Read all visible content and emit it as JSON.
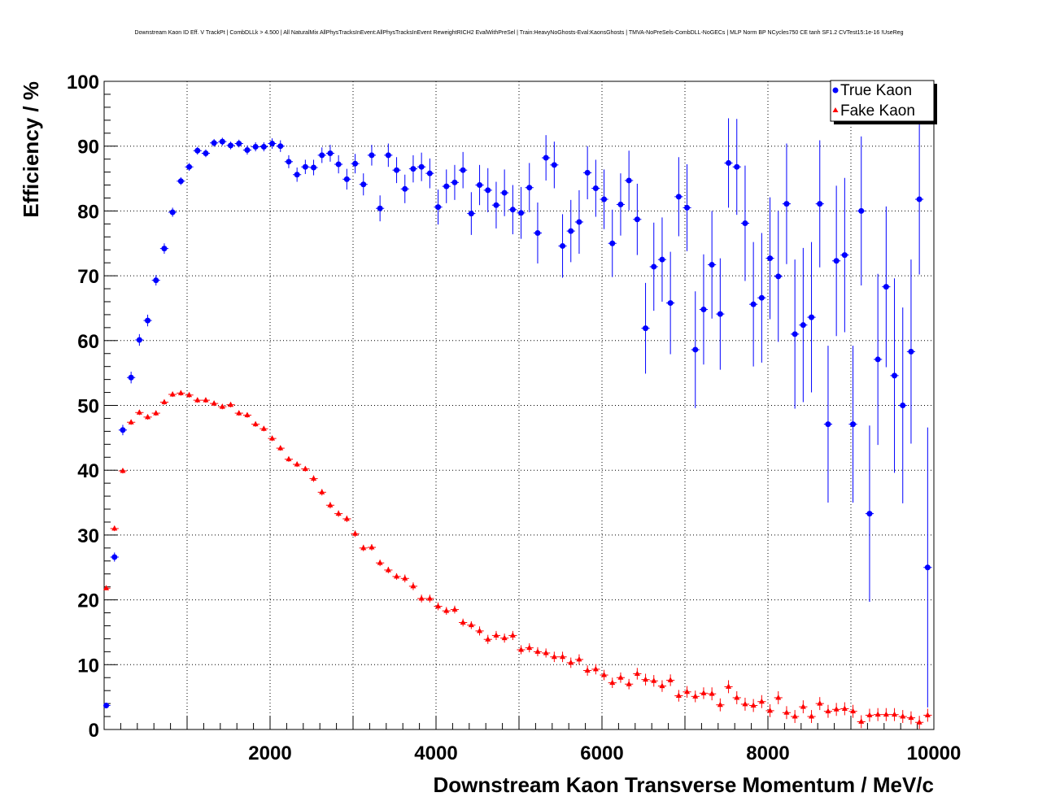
{
  "chart_data": {
    "type": "scatter",
    "title": "Downstream Kaon ID Eff. V TrackPt | CombDLLk > 4.500 | All NaturalMix AllPhysTracksInEvent:AllPhysTracksInEvent ReweightRICH2 EvalWithPreSel | Train:HeavyNoGhosts-Eval:KaonsGhosts | TMVA-NoPreSels-CombDLL-NoGECs | MLP Norm BP NCycles750 CE tanh SF1.2 CVTest15:1e-16 !UseReg",
    "xlabel": "Downstream Kaon Transverse Momentum / MeV/c",
    "ylabel": "Efficiency / %",
    "xlim": [
      0,
      10000
    ],
    "ylim": [
      0,
      100
    ],
    "grid": true,
    "legend_position": "top-right",
    "x_ticks": [
      "2000",
      "4000",
      "6000",
      "8000",
      "10000"
    ],
    "y_ticks": [
      "0",
      "10",
      "20",
      "30",
      "40",
      "50",
      "60",
      "70",
      "80",
      "90",
      "100"
    ],
    "series": [
      {
        "name": "True Kaon",
        "color": "#0000ff",
        "marker": "circle",
        "x": [
          25,
          125,
          225,
          325,
          425,
          525,
          625,
          725,
          825,
          925,
          1025,
          1125,
          1225,
          1325,
          1425,
          1525,
          1625,
          1725,
          1825,
          1925,
          2025,
          2125,
          2225,
          2325,
          2425,
          2525,
          2625,
          2725,
          2825,
          2925,
          3025,
          3125,
          3225,
          3325,
          3425,
          3525,
          3625,
          3725,
          3825,
          3925,
          4025,
          4125,
          4225,
          4325,
          4425,
          4525,
          4625,
          4725,
          4825,
          4925,
          5025,
          5125,
          5225,
          5325,
          5425,
          5525,
          5625,
          5725,
          5825,
          5925,
          6025,
          6125,
          6225,
          6325,
          6425,
          6525,
          6625,
          6725,
          6825,
          6925,
          7025,
          7125,
          7225,
          7325,
          7425,
          7525,
          7625,
          7725,
          7825,
          7925,
          8025,
          8125,
          8225,
          8325,
          8425,
          8525,
          8625,
          8725,
          8825,
          8925,
          9025,
          9125,
          9225,
          9325,
          9425,
          9525,
          9625,
          9725,
          9825,
          9925
        ],
        "values": [
          3.7,
          26.6,
          46.2,
          54.3,
          60.1,
          63.1,
          69.3,
          74.2,
          79.8,
          84.6,
          86.8,
          89.3,
          88.9,
          90.5,
          90.7,
          90.1,
          90.4,
          89.4,
          89.9,
          89.9,
          90.4,
          90.0,
          87.6,
          85.6,
          86.8,
          86.7,
          88.6,
          88.9,
          87.2,
          84.9,
          87.3,
          84.1,
          88.6,
          80.4,
          88.6,
          86.3,
          83.4,
          86.5,
          86.8,
          85.8,
          80.6,
          83.8,
          84.4,
          86.3,
          79.6,
          84.0,
          83.2,
          80.9,
          82.8,
          80.2,
          79.7,
          83.6,
          76.6,
          88.2,
          87.1,
          74.6,
          76.9,
          78.3,
          85.9,
          83.5,
          81.8,
          75.0,
          81.0,
          84.7,
          78.7,
          61.9,
          71.4,
          72.5,
          65.8,
          82.2,
          80.5,
          58.6,
          64.8,
          71.7,
          64.1,
          87.4,
          86.8,
          78.1,
          65.6,
          66.6,
          72.7,
          69.9,
          81.1,
          61.0,
          62.4,
          63.6,
          81.1,
          47.1,
          72.3,
          73.2,
          47.1,
          80.0,
          33.3,
          57.1,
          68.3,
          54.6,
          50.0,
          58.3,
          81.8,
          25.0
        ],
        "errors": [
          0.3,
          0.7,
          0.8,
          0.9,
          0.9,
          0.9,
          0.8,
          0.8,
          0.7,
          0.6,
          0.6,
          0.6,
          0.6,
          0.6,
          0.6,
          0.6,
          0.6,
          0.7,
          0.7,
          0.7,
          0.8,
          0.9,
          1.0,
          1.1,
          1.1,
          1.2,
          1.2,
          1.3,
          1.4,
          1.6,
          1.5,
          1.7,
          1.6,
          2.0,
          1.8,
          2.0,
          2.2,
          2.1,
          2.2,
          2.3,
          2.7,
          2.6,
          2.7,
          2.8,
          3.3,
          3.1,
          3.4,
          3.6,
          3.6,
          3.8,
          4.0,
          3.8,
          4.7,
          3.5,
          3.6,
          4.9,
          4.8,
          4.9,
          4.1,
          4.4,
          4.6,
          5.2,
          4.8,
          4.6,
          5.5,
          7.0,
          6.8,
          6.5,
          7.9,
          6.1,
          6.7,
          9.0,
          8.5,
          8.3,
          8.6,
          6.9,
          7.4,
          8.9,
          9.6,
          10.0,
          9.4,
          10.1,
          9.3,
          11.5,
          11.9,
          11.6,
          9.8,
          12.1,
          11.6,
          11.9,
          12.1,
          11.5,
          13.6,
          13.2,
          12.4,
          15.0,
          15.1,
          14.2,
          11.6,
          21.6
        ]
      },
      {
        "name": "Fake Kaon",
        "color": "#ff0000",
        "marker": "triangle",
        "x": [
          25,
          125,
          225,
          325,
          425,
          525,
          625,
          725,
          825,
          925,
          1025,
          1125,
          1225,
          1325,
          1425,
          1525,
          1625,
          1725,
          1825,
          1925,
          2025,
          2125,
          2225,
          2325,
          2425,
          2525,
          2625,
          2725,
          2825,
          2925,
          3025,
          3125,
          3225,
          3325,
          3425,
          3525,
          3625,
          3725,
          3825,
          3925,
          4025,
          4125,
          4225,
          4325,
          4425,
          4525,
          4625,
          4725,
          4825,
          4925,
          5025,
          5125,
          5225,
          5325,
          5425,
          5525,
          5625,
          5725,
          5825,
          5925,
          6025,
          6125,
          6225,
          6325,
          6425,
          6525,
          6625,
          6725,
          6825,
          6925,
          7025,
          7125,
          7225,
          7325,
          7425,
          7525,
          7625,
          7725,
          7825,
          7925,
          8025,
          8125,
          8225,
          8325,
          8425,
          8525,
          8625,
          8725,
          8825,
          8925,
          9025,
          9125,
          9225,
          9325,
          9425,
          9525,
          9625,
          9725,
          9825,
          9925
        ],
        "values": [
          21.8,
          31.0,
          39.9,
          47.4,
          48.9,
          48.2,
          48.8,
          50.5,
          51.7,
          51.9,
          51.6,
          50.8,
          50.8,
          50.3,
          49.8,
          50.1,
          48.8,
          48.5,
          47.1,
          46.4,
          44.9,
          43.4,
          41.7,
          40.9,
          40.2,
          38.7,
          36.6,
          34.6,
          33.3,
          32.5,
          30.2,
          28.0,
          28.1,
          25.7,
          24.6,
          23.6,
          23.3,
          22.1,
          20.2,
          20.2,
          19.0,
          18.3,
          18.5,
          16.5,
          16.1,
          15.2,
          13.9,
          14.5,
          14.1,
          14.5,
          12.3,
          12.6,
          12.0,
          11.8,
          11.2,
          11.2,
          10.3,
          10.8,
          9.1,
          9.3,
          8.4,
          7.2,
          8.0,
          7.0,
          8.6,
          7.7,
          7.5,
          6.7,
          7.6,
          5.2,
          5.8,
          5.1,
          5.6,
          5.5,
          3.8,
          6.6,
          4.9,
          3.9,
          3.7,
          4.3,
          2.9,
          4.9,
          2.6,
          2.0,
          3.5,
          2.0,
          4.0,
          2.8,
          3.1,
          3.2,
          2.8,
          1.2,
          2.2,
          2.3,
          2.3,
          2.3,
          2.0,
          1.8,
          1.1,
          2.2
        ],
        "errors": [
          0.3,
          0.4,
          0.4,
          0.4,
          0.4,
          0.4,
          0.4,
          0.4,
          0.4,
          0.4,
          0.4,
          0.4,
          0.4,
          0.4,
          0.4,
          0.4,
          0.4,
          0.4,
          0.4,
          0.4,
          0.4,
          0.4,
          0.4,
          0.4,
          0.4,
          0.5,
          0.5,
          0.5,
          0.5,
          0.5,
          0.5,
          0.5,
          0.5,
          0.5,
          0.5,
          0.5,
          0.6,
          0.6,
          0.6,
          0.6,
          0.6,
          0.6,
          0.6,
          0.6,
          0.6,
          0.7,
          0.7,
          0.7,
          0.7,
          0.7,
          0.7,
          0.7,
          0.7,
          0.7,
          0.8,
          0.8,
          0.8,
          0.8,
          0.8,
          0.8,
          0.8,
          0.8,
          0.8,
          0.8,
          0.9,
          0.9,
          0.9,
          0.9,
          0.9,
          0.9,
          0.9,
          0.9,
          0.9,
          1.0,
          1.0,
          1.0,
          1.0,
          1.0,
          1.0,
          1.0,
          1.0,
          1.0,
          1.0,
          1.0,
          1.0,
          1.0,
          1.0,
          1.0,
          1.0,
          1.0,
          1.0,
          1.0,
          1.0,
          1.0,
          1.0,
          1.0,
          1.0,
          1.0,
          1.0,
          1.0
        ]
      }
    ]
  }
}
